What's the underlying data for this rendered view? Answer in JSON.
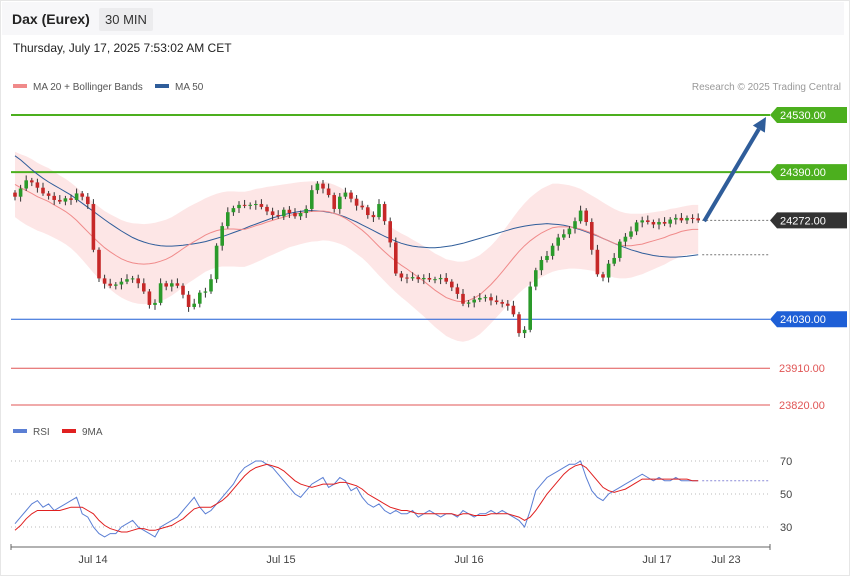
{
  "header": {
    "title": "Dax (Eurex)",
    "timeframe": "30 MIN"
  },
  "timestamp": "Thursday, July 17, 2025 7:53:02 AM CET",
  "legend": {
    "ma20": {
      "label": "MA 20 + Bollinger Bands",
      "color": "#f08a8a"
    },
    "ma50": {
      "label": "MA 50",
      "color": "#2f5d9a"
    },
    "copyright": "Research © 2025 Trading Central"
  },
  "rsi_legend": {
    "rsi": {
      "label": "RSI",
      "color": "#5b7fd4"
    },
    "ma9": {
      "label": "9MA",
      "color": "#e02020"
    }
  },
  "chart_data": {
    "type": "candlestick",
    "ylim": [
      23740,
      24620
    ],
    "x_tick_labels": [
      "Jul 14",
      "Jul 15",
      "Jul 16",
      "Jul 17",
      "Jul 23"
    ],
    "current_price": "24272.00",
    "levels": [
      {
        "value": 24530,
        "label": "24530.00",
        "kind": "resistance",
        "color": "#4caf1e"
      },
      {
        "value": 24390,
        "label": "24390.00",
        "kind": "resistance",
        "color": "#4caf1e"
      },
      {
        "value": 24030,
        "label": "24030.00",
        "kind": "pivot",
        "color": "#1e5fd6"
      },
      {
        "value": 23910,
        "label": "23910.00",
        "kind": "support",
        "color": "#e05555"
      },
      {
        "value": 23820,
        "label": "23820.00",
        "kind": "support",
        "color": "#e05555"
      }
    ],
    "forecast_arrow": {
      "from": 24270,
      "to": 24525
    },
    "close": [
      24330,
      24350,
      24370,
      24365,
      24352,
      24338,
      24332,
      24322,
      24318,
      24326,
      24322,
      24338,
      24330,
      24312,
      24200,
      24130,
      24117,
      24112,
      24115,
      24122,
      24128,
      24130,
      24118,
      24098,
      24065,
      24070,
      24118,
      24110,
      24118,
      24112,
      24090,
      24060,
      24068,
      24095,
      24098,
      24128,
      24210,
      24258,
      24292,
      24302,
      24310,
      24308,
      24310,
      24312,
      24305,
      24294,
      24285,
      24282,
      24298,
      24290,
      24282,
      24290,
      24300,
      24346,
      24362,
      24350,
      24334,
      24300,
      24330,
      24340,
      24325,
      24308,
      24304,
      24285,
      24280,
      24312,
      24270,
      24218,
      24142,
      24132,
      24130,
      24133,
      24128,
      24131,
      24127,
      24128,
      24131,
      24122,
      24108,
      24092,
      24068,
      24071,
      24078,
      24082,
      24084,
      24076,
      24072,
      24068,
      24063,
      24042,
      23996,
      24004,
      24110,
      24150,
      24175,
      24185,
      24210,
      24230,
      24238,
      24252,
      24270,
      24296,
      24268,
      24200,
      24140,
      24132,
      24166,
      24180,
      24220,
      24232,
      24245,
      24267,
      24272,
      24268,
      24262,
      24268,
      24264,
      24274,
      24278,
      24272,
      24278,
      24277,
      24272
    ],
    "ma20": [
      24360,
      24352,
      24345,
      24338,
      24330,
      24324,
      24318,
      24310,
      24302,
      24294,
      24284,
      24272,
      24258,
      24244,
      24230,
      24217,
      24205,
      24195,
      24186,
      24178,
      24172,
      24168,
      24166,
      24165,
      24166,
      24168,
      24172,
      24177,
      24184,
      24193,
      24203,
      24212,
      24220,
      24228,
      24236,
      24242,
      24247,
      24250,
      24251,
      24251,
      24250,
      24250,
      24254,
      24259,
      24263,
      24268,
      24272,
      24276,
      24280,
      24284,
      24287,
      24290,
      24292,
      24294,
      24294,
      24295,
      24293,
      24289,
      24284,
      24277,
      24268,
      24258,
      24248,
      24236,
      24222,
      24208,
      24195,
      24183,
      24172,
      24162,
      24153,
      24143,
      24133,
      24123,
      24112,
      24101,
      24092,
      24083,
      24078,
      24074,
      24073,
      24076,
      24082,
      24090,
      24102,
      24115,
      24130,
      24146,
      24163,
      24180,
      24196,
      24210,
      24222,
      24232,
      24241,
      24248,
      24254,
      24256,
      24256,
      24256,
      24254,
      24251,
      24246,
      24241,
      24235,
      24228,
      24222,
      24216,
      24212,
      24210,
      24210,
      24212,
      24214,
      24218,
      24222,
      24226,
      24230,
      24236,
      24240,
      24245,
      24248,
      24250,
      24250
    ],
    "ma50": [
      24430,
      24420,
      24408,
      24396,
      24385,
      24375,
      24366,
      24358,
      24350,
      24342,
      24334,
      24324,
      24314,
      24304,
      24294,
      24284,
      24274,
      24264,
      24255,
      24246,
      24238,
      24230,
      24224,
      24219,
      24215,
      24212,
      24210,
      24209,
      24209,
      24210,
      24211,
      24213,
      24215,
      24217,
      24220,
      24224,
      24228,
      24232,
      24237,
      24242,
      24247,
      24252,
      24258,
      24263,
      24268,
      24273,
      24278,
      24282,
      24286,
      24289,
      24292,
      24294,
      24296,
      24296,
      24295,
      24294,
      24292,
      24289,
      24285,
      24280,
      24274,
      24268,
      24261,
      24254,
      24247,
      24240,
      24233,
      24227,
      24221,
      24216,
      24212,
      24209,
      24207,
      24206,
      24205,
      24205,
      24206,
      24208,
      24210,
      24213,
      24216,
      24220,
      24224,
      24228,
      24232,
      24236,
      24240,
      24244,
      24248,
      24252,
      24255,
      24258,
      24260,
      24262,
      24263,
      24264,
      24263,
      24262,
      24260,
      24257,
      24253,
      24249,
      24244,
      24239,
      24234,
      24228,
      24222,
      24216,
      24210,
      24205,
      24200,
      24196,
      24192,
      24189,
      24186,
      24184,
      24183,
      24182,
      24182,
      24183,
      24184,
      24186,
      24188
    ],
    "bb_width": [
      80,
      82,
      84,
      84,
      83,
      82,
      82,
      81,
      80,
      80,
      80,
      81,
      82,
      84,
      86,
      88,
      90,
      92,
      94,
      95,
      96,
      97,
      98,
      98,
      98,
      98,
      98,
      97,
      96,
      95,
      94,
      93,
      92,
      91,
      90,
      90,
      90,
      91,
      92,
      92,
      92,
      92,
      91,
      90,
      88,
      86,
      84,
      82,
      80,
      78,
      77,
      76,
      75,
      74,
      73,
      72,
      71,
      70,
      69,
      68,
      68,
      68,
      68,
      69,
      70,
      71,
      72,
      74,
      76,
      78,
      80,
      82,
      84,
      86,
      88,
      90,
      92,
      94,
      96,
      97,
      98,
      98,
      98,
      97,
      96,
      95,
      95,
      96,
      98,
      100,
      102,
      104,
      106,
      107,
      108,
      108,
      108,
      106,
      104,
      102,
      100,
      98,
      95,
      92,
      90,
      88,
      86,
      84,
      82,
      80,
      78,
      76,
      74,
      72,
      70,
      68,
      66,
      64,
      62,
      60,
      60,
      60,
      60
    ],
    "rsi": [
      32,
      36,
      40,
      44,
      46,
      42,
      44,
      40,
      42,
      44,
      46,
      48,
      38,
      36,
      30,
      26,
      24,
      26,
      26,
      30,
      32,
      34,
      30,
      28,
      26,
      24,
      30,
      32,
      34,
      36,
      40,
      44,
      48,
      42,
      38,
      40,
      44,
      48,
      52,
      56,
      62,
      66,
      68,
      70,
      70,
      68,
      66,
      62,
      58,
      54,
      50,
      48,
      52,
      56,
      58,
      60,
      54,
      56,
      60,
      58,
      52,
      54,
      48,
      44,
      42,
      44,
      40,
      38,
      40,
      38,
      38,
      40,
      36,
      38,
      40,
      38,
      36,
      38,
      38,
      36,
      40,
      38,
      36,
      38,
      38,
      40,
      38,
      40,
      38,
      36,
      34,
      30,
      40,
      52,
      56,
      60,
      62,
      64,
      66,
      68,
      68,
      70,
      60,
      52,
      48,
      46,
      50,
      52,
      54,
      56,
      58,
      60,
      62,
      60,
      58,
      60,
      58,
      58,
      60,
      58,
      58,
      58,
      58
    ],
    "rsi9": [
      28,
      31,
      35,
      38,
      40,
      40,
      40,
      40,
      40,
      41,
      42,
      42,
      42,
      40,
      38,
      34,
      31,
      29,
      28,
      27,
      27,
      28,
      29,
      29,
      28,
      28,
      29,
      30,
      31,
      33,
      35,
      38,
      41,
      42,
      42,
      42,
      44,
      46,
      49,
      53,
      57,
      61,
      64,
      66,
      67,
      68,
      67,
      66,
      64,
      61,
      58,
      56,
      55,
      54,
      55,
      56,
      56,
      56,
      57,
      57,
      56,
      55,
      53,
      50,
      48,
      46,
      44,
      42,
      41,
      40,
      40,
      39,
      38,
      38,
      38,
      38,
      38,
      38,
      38,
      37,
      38,
      38,
      37,
      37,
      37,
      38,
      38,
      38,
      38,
      37,
      36,
      34,
      36,
      40,
      45,
      50,
      54,
      58,
      62,
      65,
      67,
      68,
      66,
      62,
      58,
      54,
      52,
      51,
      52,
      53,
      55,
      57,
      59,
      59,
      59,
      59,
      59,
      59,
      59,
      59,
      59,
      58,
      58
    ]
  }
}
